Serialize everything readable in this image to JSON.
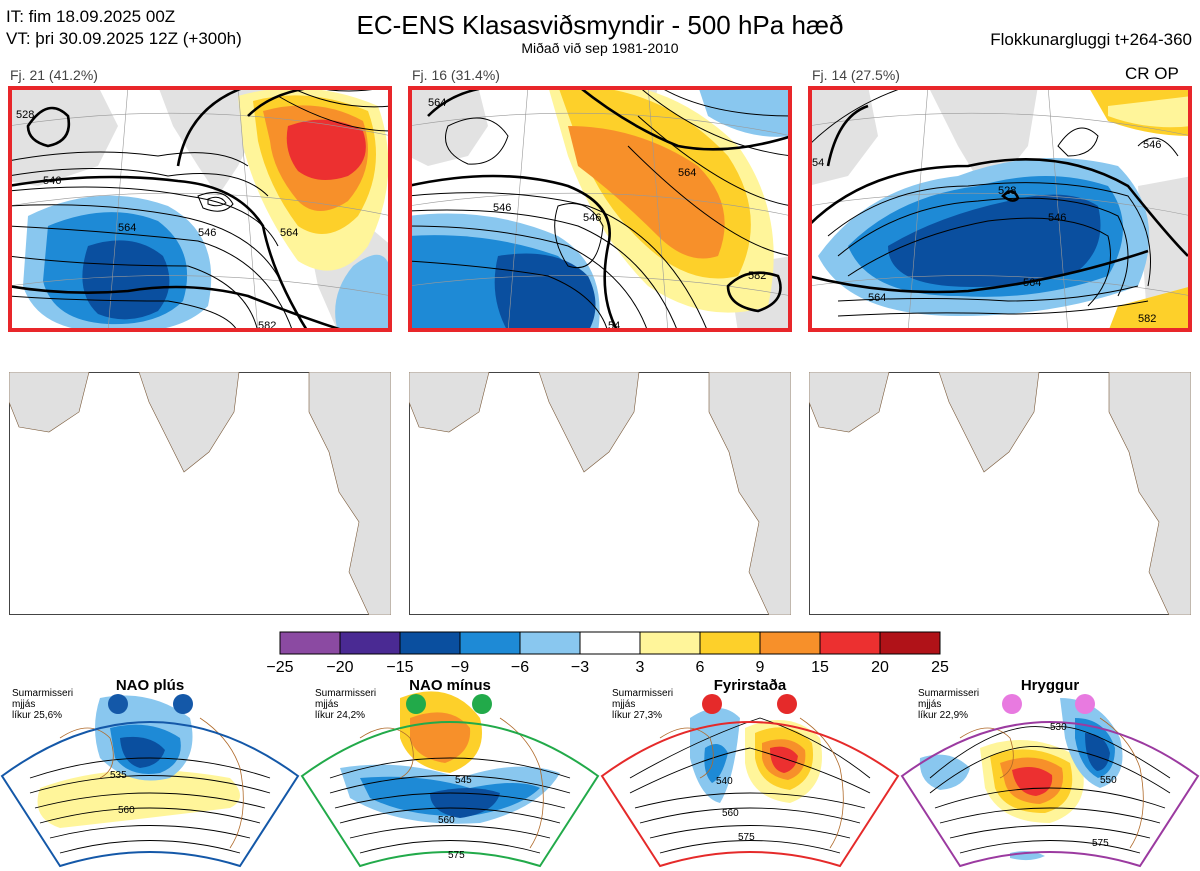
{
  "header": {
    "it": "IT: fim 18.09.2025 00Z",
    "vt": "VT: þri 30.09.2025 12Z  (+300h)",
    "title": "EC-ENS Klasasviðsmyndir - 500 hPa hæð",
    "subtitle": "Miðað við sep 1981-2010",
    "window": "Flokkunargluggi t+264-360"
  },
  "clusters": [
    {
      "label": "Fj. 21 (41.2%)",
      "contours": [
        "528",
        "546",
        "564",
        "546",
        "564",
        "582"
      ],
      "frame": "#e8262a"
    },
    {
      "label": "Fj. 16 (31.4%)",
      "contours": [
        "546",
        "564",
        "546",
        "564",
        "582",
        "54"
      ],
      "frame": "#e8262a"
    },
    {
      "label": "Fj. 14 (27.5%)",
      "contours": [
        "54",
        "528",
        "546",
        "546",
        "564",
        "564",
        "582"
      ],
      "frame": "#e8262a",
      "tag": "CR OP"
    }
  ],
  "colorbar": {
    "ticks": [
      "−25",
      "−20",
      "−15",
      "−9",
      "−6",
      "−3",
      "3",
      "6",
      "9",
      "15",
      "20",
      "25"
    ],
    "colors": [
      "#8b4aa2",
      "#4a2a93",
      "#0a4f9f",
      "#1e8ad6",
      "#89c7ef",
      "#ffffff",
      "#fff59a",
      "#fdd02a",
      "#f7902a",
      "#ec3030",
      "#b01218"
    ]
  },
  "regimes": [
    {
      "name": "NAO plús",
      "note": [
        "Sumarmisseri",
        "mjjás",
        "líkur 25,6%"
      ],
      "color": "#1458a8",
      "labels": [
        "535",
        "560"
      ]
    },
    {
      "name": "NAO mínus",
      "note": [
        "Sumarmisseri",
        "mjjás",
        "líkur 24,2%"
      ],
      "color": "#22aa4a",
      "labels": [
        "545",
        "560",
        "575"
      ]
    },
    {
      "name": "Fyrirstaða",
      "note": [
        "Sumarmisseri",
        "mjjás",
        "líkur 27,3%"
      ],
      "color": "#e52a2a",
      "labels": [
        "540",
        "560",
        "575"
      ]
    },
    {
      "name": "Hryggur",
      "note": [
        "Sumarmisseri",
        "mjjás",
        "líkur 22,9%"
      ],
      "color": "#e87ae0",
      "labels": [
        "530",
        "550",
        "575"
      ]
    }
  ]
}
